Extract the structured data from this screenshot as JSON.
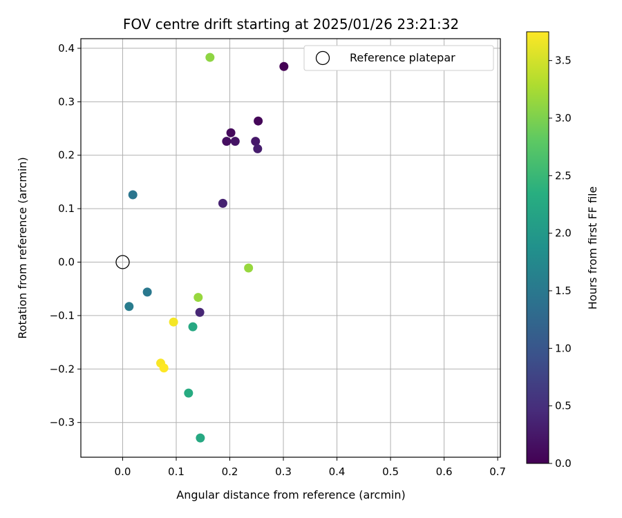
{
  "chart_data": {
    "type": "scatter",
    "title": "FOV centre drift starting at 2025/01/26 23:21:32",
    "xlabel": "Angular distance from reference (arcmin)",
    "ylabel": "Rotation from reference (arcmin)",
    "xlim": [
      -0.078,
      0.705
    ],
    "ylim": [
      -0.365,
      0.418
    ],
    "xticks": [
      0.0,
      0.1,
      0.2,
      0.3,
      0.4,
      0.5,
      0.6,
      0.7
    ],
    "xtick_labels": [
      "0.0",
      "0.1",
      "0.2",
      "0.3",
      "0.4",
      "0.5",
      "0.6",
      "0.7"
    ],
    "yticks": [
      -0.3,
      -0.2,
      -0.1,
      0.0,
      0.1,
      0.2,
      0.3,
      0.4
    ],
    "ytick_labels": [
      "−0.3",
      "−0.2",
      "−0.1",
      "0.0",
      "0.1",
      "0.2",
      "0.3",
      "0.4"
    ],
    "grid": true,
    "legend_position": "top-right",
    "reference_point": {
      "name": "Reference platepar",
      "x": 0.0,
      "y": 0.0
    },
    "colorbar": {
      "label": "Hours from first FF file",
      "colormap": "viridis",
      "range": [
        0.0,
        3.75
      ],
      "ticks": [
        0.0,
        0.5,
        1.0,
        1.5,
        2.0,
        2.5,
        3.0,
        3.5
      ],
      "tick_labels": [
        "0.0",
        "0.5",
        "1.0",
        "1.5",
        "2.0",
        "2.5",
        "3.0",
        "3.5"
      ]
    },
    "points": [
      {
        "x": 0.301,
        "y": 0.366,
        "hours": 0.0
      },
      {
        "x": 0.253,
        "y": 0.264,
        "hours": 0.05
      },
      {
        "x": 0.202,
        "y": 0.242,
        "hours": 0.1
      },
      {
        "x": 0.194,
        "y": 0.226,
        "hours": 0.15
      },
      {
        "x": 0.21,
        "y": 0.226,
        "hours": 0.2
      },
      {
        "x": 0.248,
        "y": 0.226,
        "hours": 0.25
      },
      {
        "x": 0.252,
        "y": 0.212,
        "hours": 0.3
      },
      {
        "x": 0.187,
        "y": 0.11,
        "hours": 0.35
      },
      {
        "x": 0.144,
        "y": -0.094,
        "hours": 0.4
      },
      {
        "x": 0.019,
        "y": 0.126,
        "hours": 1.45
      },
      {
        "x": 0.046,
        "y": -0.056,
        "hours": 1.5
      },
      {
        "x": 0.012,
        "y": -0.083,
        "hours": 1.55
      },
      {
        "x": 0.131,
        "y": -0.121,
        "hours": 2.25
      },
      {
        "x": 0.123,
        "y": -0.245,
        "hours": 2.3
      },
      {
        "x": 0.145,
        "y": -0.329,
        "hours": 2.25
      },
      {
        "x": 0.163,
        "y": 0.383,
        "hours": 3.1
      },
      {
        "x": 0.235,
        "y": -0.011,
        "hours": 3.15
      },
      {
        "x": 0.141,
        "y": -0.066,
        "hours": 3.15
      },
      {
        "x": 0.095,
        "y": -0.112,
        "hours": 3.7
      },
      {
        "x": 0.071,
        "y": -0.189,
        "hours": 3.72
      },
      {
        "x": 0.077,
        "y": -0.198,
        "hours": 3.75
      }
    ]
  }
}
